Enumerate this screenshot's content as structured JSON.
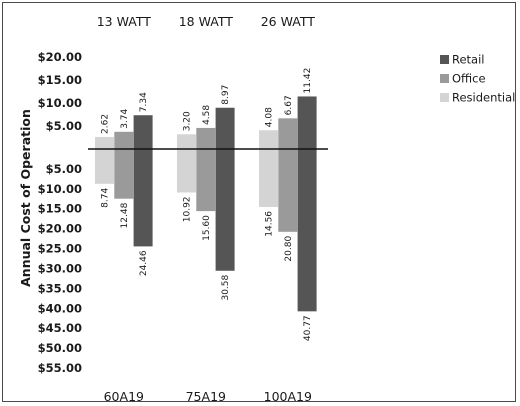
{
  "chart_data": {
    "type": "bar",
    "title": "",
    "ylabel": "Annual Cost of Operation",
    "xlabel": "",
    "top_labels": [
      "13 WATT",
      "18 WATT",
      "26 WATT"
    ],
    "categories": [
      "60A19",
      "75A19",
      "100A19"
    ],
    "ylim": [
      -55,
      20
    ],
    "y_ticks": [
      {
        "value": 20,
        "label": "$20.00"
      },
      {
        "value": 15,
        "label": "$15.00"
      },
      {
        "value": 10,
        "label": "$10.00"
      },
      {
        "value": 5,
        "label": "$5.00"
      },
      {
        "value": -5,
        "label": "$5.00"
      },
      {
        "value": -10,
        "label": "$10.00"
      },
      {
        "value": -15,
        "label": "$15.00"
      },
      {
        "value": -20,
        "label": "$20.00"
      },
      {
        "value": -25,
        "label": "$25.00"
      },
      {
        "value": -30,
        "label": "$30.00"
      },
      {
        "value": -35,
        "label": "$35.00"
      },
      {
        "value": -40,
        "label": "$40.00"
      },
      {
        "value": -45,
        "label": "$45.00"
      },
      {
        "value": -50,
        "label": "$50.00"
      },
      {
        "value": -55,
        "label": "$55.00"
      }
    ],
    "series": [
      {
        "name": "Residential",
        "color": "#d4d4d4",
        "positive": [
          2.62,
          3.2,
          4.08
        ],
        "positive_labels": [
          "2.62",
          "3.20",
          "4.08"
        ],
        "negative": [
          -8.74,
          -10.92,
          -14.56
        ],
        "negative_labels": [
          "8.74",
          "10.92",
          "14.56"
        ]
      },
      {
        "name": "Office",
        "color": "#9a9a9a",
        "positive": [
          3.74,
          4.58,
          6.67
        ],
        "positive_labels": [
          "3.74",
          "4.58",
          "6.67"
        ],
        "negative": [
          -12.48,
          -15.6,
          -20.8
        ],
        "negative_labels": [
          "12.48",
          "15.60",
          "20.80"
        ]
      },
      {
        "name": "Retail",
        "color": "#555555",
        "positive": [
          7.34,
          8.97,
          11.42
        ],
        "positive_labels": [
          "7.34",
          "8.97",
          "11.42"
        ],
        "negative": [
          -24.46,
          -30.58,
          -40.77
        ],
        "negative_labels": [
          "24.46",
          "30.58",
          "40.77"
        ]
      }
    ],
    "legend": {
      "placement": "top-right",
      "order": [
        "Retail",
        "Office",
        "Residential"
      ]
    },
    "grid": false,
    "zero_line": true
  }
}
